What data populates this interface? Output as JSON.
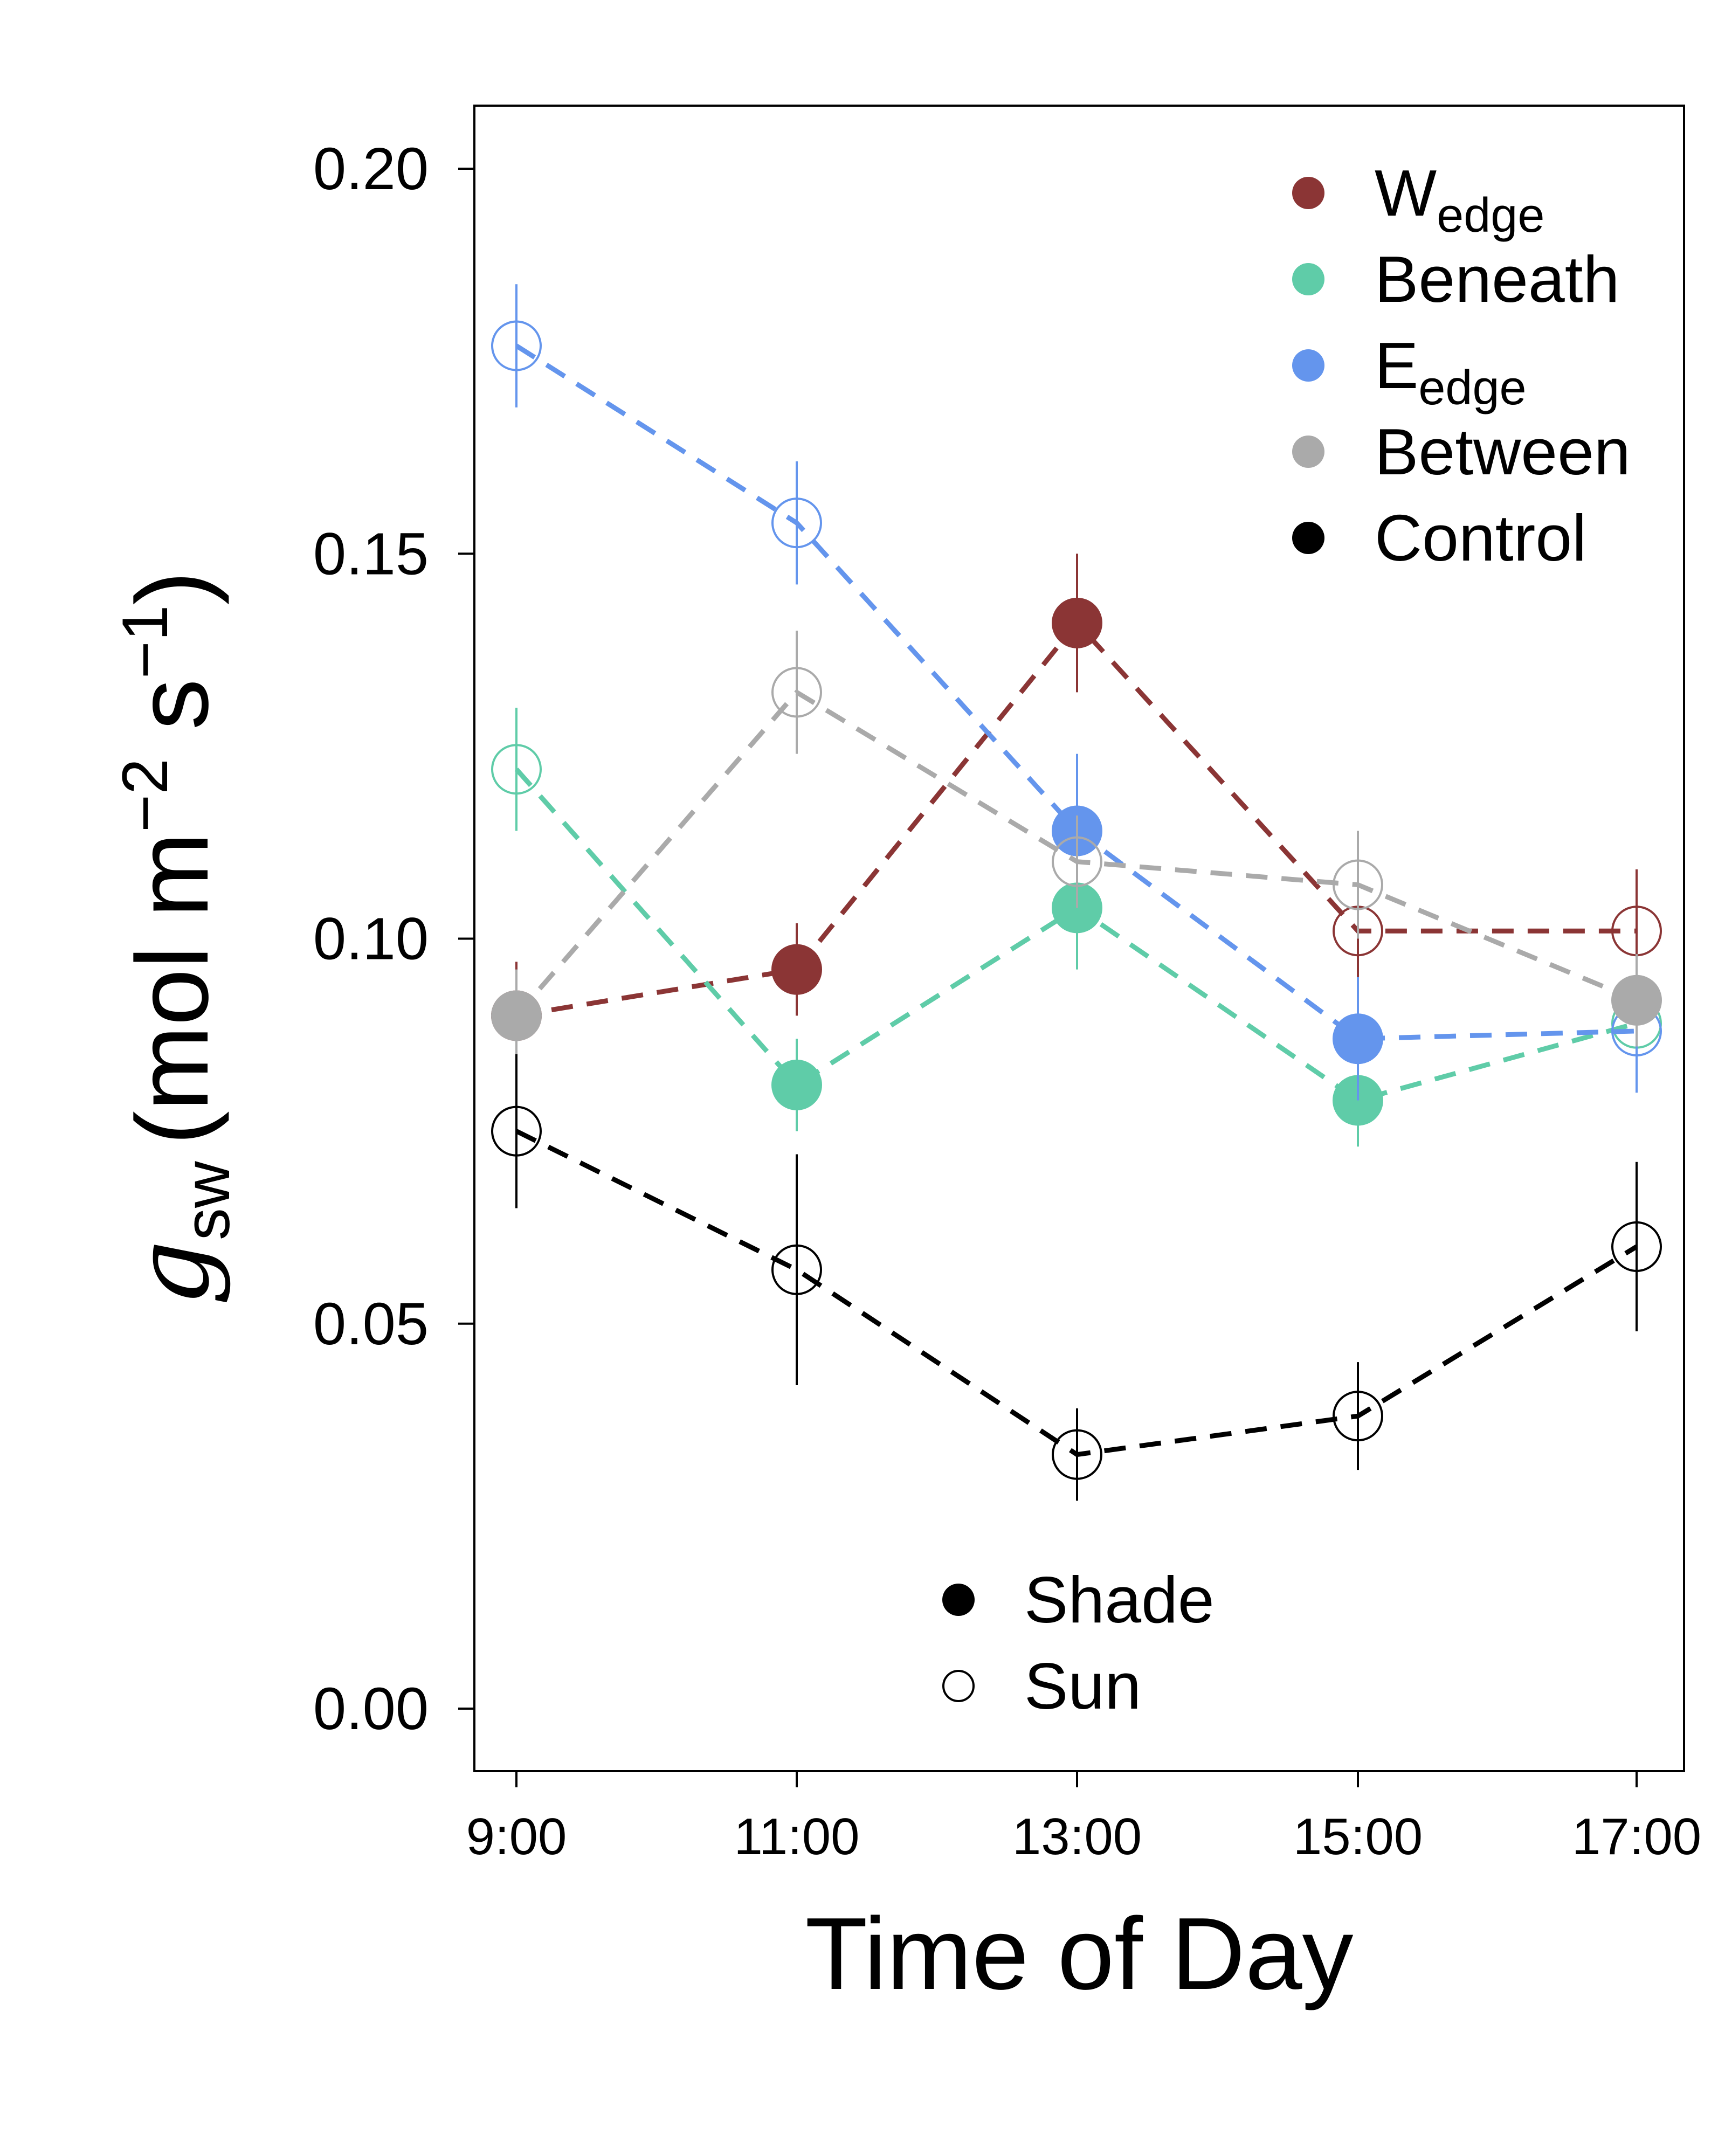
{
  "chart_data": {
    "type": "line",
    "xlabel": "Time of Day",
    "ylabel": {
      "symbol": "g",
      "subscript": "sw",
      "units_open": "(mol m",
      "exp1": "−2",
      "units_mid": " s",
      "exp2": "−1",
      "units_close": ")"
    },
    "x": [
      "9:00",
      "11:00",
      "13:00",
      "15:00",
      "17:00"
    ],
    "ylim": [
      0.0,
      0.2
    ],
    "yticks": [
      0.0,
      0.05,
      0.1,
      0.15,
      0.2
    ],
    "ytick_labels": [
      "0.00",
      "0.05",
      "0.10",
      "0.15",
      "0.20"
    ],
    "grid": false,
    "series": [
      {
        "name": "W",
        "name_sub": "edge",
        "color": "#8B3535",
        "values": [
          0.09,
          0.096,
          0.141,
          0.101,
          0.101
        ],
        "err": [
          0.007,
          0.006,
          0.009,
          0.007,
          0.008
        ],
        "exposure": [
          "shade",
          "shade",
          "shade",
          "sun",
          "sun"
        ]
      },
      {
        "name": "Beneath",
        "name_sub": "",
        "color": "#5FCCA8",
        "values": [
          0.122,
          0.081,
          0.104,
          0.079,
          0.089
        ],
        "err": [
          0.008,
          0.006,
          0.008,
          0.006,
          0.006
        ],
        "exposure": [
          "sun",
          "shade",
          "shade",
          "shade",
          "sun"
        ]
      },
      {
        "name": "E",
        "name_sub": "edge",
        "color": "#6495ED",
        "values": [
          0.177,
          0.154,
          0.114,
          0.087,
          0.088
        ],
        "err": [
          0.008,
          0.008,
          0.01,
          0.008,
          0.008
        ],
        "exposure": [
          "sun",
          "sun",
          "shade",
          "shade",
          "sun"
        ]
      },
      {
        "name": "Between",
        "name_sub": "",
        "color": "#AAAAAA",
        "values": [
          0.09,
          0.132,
          0.11,
          0.107,
          0.092
        ],
        "err": [
          0.006,
          0.008,
          0.006,
          0.007,
          0.006
        ],
        "exposure": [
          "shade",
          "sun",
          "sun",
          "sun",
          "shade"
        ]
      },
      {
        "name": "Control",
        "name_sub": "",
        "color": "#000000",
        "values": [
          0.075,
          0.057,
          0.033,
          0.038,
          0.06
        ],
        "err": [
          0.01,
          0.015,
          0.006,
          0.007,
          0.011
        ],
        "exposure": [
          "sun",
          "sun",
          "sun",
          "sun",
          "sun"
        ]
      }
    ],
    "legend_series_placement": "top-right",
    "legend_exposure": {
      "placement": "bottom-center",
      "items": [
        {
          "label": "Shade",
          "filled": true
        },
        {
          "label": "Sun",
          "filled": false
        }
      ]
    }
  }
}
